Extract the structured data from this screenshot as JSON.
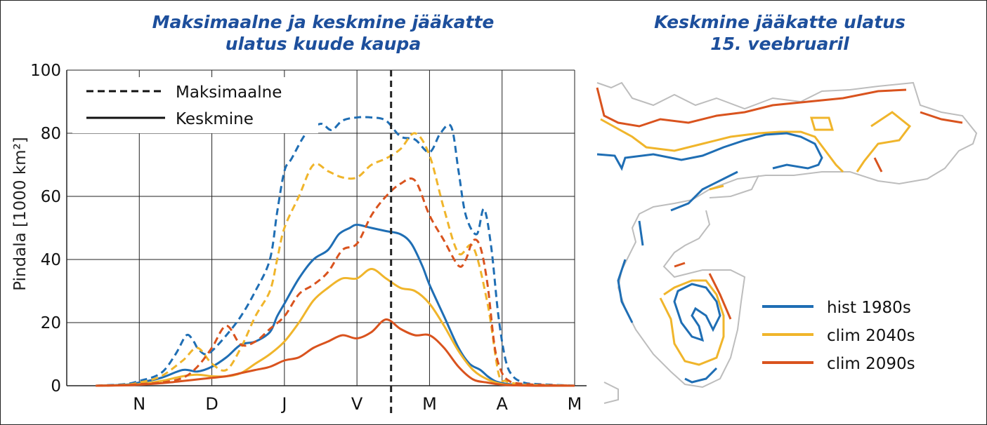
{
  "left_title": [
    "Maksimaalne ja keskmine jääkatte",
    "ulatus kuude kaupa"
  ],
  "right_title": [
    "Keskmine jääkatte ulatus",
    "15. veebruaril"
  ],
  "colors": {
    "hist": "#1f6eb4",
    "clim2040": "#f0b52b",
    "clim2090": "#d9531e",
    "title": "#1d4f9c"
  },
  "chart_data": [
    {
      "type": "line",
      "ylabel": "Pindala [1000 km²]",
      "xlabel": "",
      "ylim": [
        0,
        100
      ],
      "yticks": [
        0,
        20,
        40,
        60,
        80,
        100
      ],
      "xlim": [
        0,
        6.4
      ],
      "xticks": [
        {
          "label": "N",
          "x": 1
        },
        {
          "label": "D",
          "x": 2
        },
        {
          "label": "J",
          "x": 3
        },
        {
          "label": "V",
          "x": 4
        },
        {
          "label": "M",
          "x": 5
        },
        {
          "label": "A",
          "x": 6
        },
        {
          "label": "M",
          "x": 7
        }
      ],
      "xticks_range": [
        0,
        7
      ],
      "grid": true,
      "reference_line_x": 4.47,
      "legend_style": [
        {
          "label": "Maksimaalne",
          "dash": true
        },
        {
          "label": "Keskmine",
          "dash": false
        }
      ],
      "series": [
        {
          "name": "hist 1980s",
          "stat": "Maksimaalne",
          "color": "#1f6eb4",
          "dash": true,
          "x": [
            0.4,
            0.8,
            1.0,
            1.3,
            1.5,
            1.65,
            1.75,
            1.8,
            1.9,
            2.0,
            2.2,
            2.4,
            2.6,
            2.8,
            2.9,
            3.0,
            3.1,
            3.3,
            3.5,
            3.65,
            3.8,
            4.0,
            4.2,
            4.4,
            4.6,
            4.8,
            5.0,
            5.15,
            5.3,
            5.4,
            5.5,
            5.65,
            5.75,
            5.85,
            5.95,
            6.05,
            6.15,
            6.3,
            6.5,
            7.0
          ],
          "y": [
            0,
            0.5,
            1.5,
            4,
            10,
            16,
            14,
            12,
            10,
            11,
            16,
            22,
            30,
            40,
            55,
            68,
            72,
            80,
            83,
            81,
            84,
            85,
            85,
            84,
            79,
            78,
            74,
            80,
            82,
            68,
            54,
            48,
            56,
            44,
            22,
            8,
            3,
            1,
            0.5,
            0
          ]
        },
        {
          "name": "hist 1980s",
          "stat": "Keskmine",
          "color": "#1f6eb4",
          "dash": false,
          "x": [
            0.4,
            0.8,
            1.0,
            1.3,
            1.6,
            1.8,
            2.0,
            2.2,
            2.4,
            2.6,
            2.8,
            2.9,
            3.0,
            3.2,
            3.4,
            3.6,
            3.75,
            3.9,
            4.0,
            4.2,
            4.4,
            4.6,
            4.75,
            4.9,
            5.0,
            5.2,
            5.4,
            5.55,
            5.7,
            5.8,
            5.9,
            6.0,
            6.1,
            6.2,
            6.4,
            7.0
          ],
          "y": [
            0,
            0.3,
            1,
            2.5,
            5,
            4.5,
            6,
            9,
            13,
            14,
            17,
            22,
            26,
            34,
            40,
            43,
            48,
            50,
            51,
            50,
            49,
            48,
            45,
            38,
            32,
            22,
            12,
            7,
            5,
            3,
            1.5,
            0.8,
            0.5,
            0.3,
            0.2,
            0
          ]
        },
        {
          "name": "clim 2040s",
          "stat": "Maksimaalne",
          "color": "#f0b52b",
          "dash": true,
          "x": [
            0.4,
            0.8,
            1.0,
            1.3,
            1.6,
            1.8,
            2.0,
            2.2,
            2.4,
            2.6,
            2.8,
            2.9,
            3.0,
            3.2,
            3.4,
            3.6,
            3.8,
            4.0,
            4.2,
            4.4,
            4.6,
            4.8,
            5.0,
            5.2,
            5.4,
            5.6,
            5.8,
            5.95,
            6.05,
            6.15,
            6.3,
            6.5,
            7.0
          ],
          "y": [
            0,
            0.3,
            1,
            3,
            8,
            12,
            7,
            5,
            12,
            22,
            30,
            40,
            50,
            60,
            70,
            68,
            66,
            66,
            70,
            72,
            75,
            80,
            73,
            56,
            42,
            44,
            26,
            4,
            1.5,
            0.8,
            0.3,
            0.2,
            0
          ]
        },
        {
          "name": "clim 2040s",
          "stat": "Keskmine",
          "color": "#f0b52b",
          "dash": false,
          "x": [
            0.4,
            0.8,
            1.0,
            1.3,
            1.6,
            1.8,
            2.0,
            2.2,
            2.4,
            2.6,
            2.8,
            3.0,
            3.2,
            3.4,
            3.6,
            3.8,
            4.0,
            4.2,
            4.4,
            4.6,
            4.8,
            5.0,
            5.2,
            5.4,
            5.6,
            5.8,
            6.0,
            6.2,
            6.5,
            7.0
          ],
          "y": [
            0,
            0.2,
            0.5,
            1.5,
            3,
            3.5,
            3,
            3,
            4,
            7,
            10,
            14,
            20,
            27,
            31,
            34,
            34,
            37,
            34,
            31,
            30,
            26,
            19,
            11,
            5,
            2,
            0.5,
            0.2,
            0.1,
            0
          ]
        },
        {
          "name": "clim 2090s",
          "stat": "Maksimaalne",
          "color": "#d9531e",
          "dash": true,
          "x": [
            0.4,
            0.8,
            1.0,
            1.3,
            1.6,
            1.8,
            2.0,
            2.2,
            2.4,
            2.6,
            2.8,
            3.0,
            3.2,
            3.4,
            3.6,
            3.8,
            4.0,
            4.2,
            4.4,
            4.6,
            4.8,
            5.0,
            5.2,
            5.4,
            5.5,
            5.6,
            5.7,
            5.8,
            5.9,
            6.0,
            6.1,
            6.2,
            6.5,
            7.0
          ],
          "y": [
            0,
            0.2,
            0.5,
            1,
            2.5,
            6,
            12,
            19,
            13,
            14,
            18,
            22,
            29,
            32,
            36,
            43,
            45,
            54,
            60,
            64,
            65,
            54,
            46,
            38,
            40,
            46,
            44,
            32,
            12,
            4,
            1.5,
            0.8,
            0.3,
            0
          ]
        },
        {
          "name": "clim 2090s",
          "stat": "Keskmine",
          "color": "#d9531e",
          "dash": false,
          "x": [
            0.4,
            0.8,
            1.0,
            1.3,
            1.6,
            1.8,
            2.0,
            2.2,
            2.4,
            2.6,
            2.8,
            3.0,
            3.2,
            3.4,
            3.6,
            3.8,
            4.0,
            4.2,
            4.4,
            4.6,
            4.8,
            5.0,
            5.2,
            5.4,
            5.6,
            5.8,
            6.0,
            6.2,
            6.5,
            7.0
          ],
          "y": [
            0,
            0.1,
            0.3,
            0.8,
            1.5,
            2,
            2.5,
            3,
            4,
            5,
            6,
            8,
            9,
            12,
            14,
            16,
            15,
            17,
            21,
            18,
            16,
            16,
            12,
            6,
            2,
            1,
            0.3,
            0.1,
            0,
            0
          ]
        }
      ]
    },
    {
      "type": "map",
      "title": "Keskmine jääkatte ulatus 15. veebruaril",
      "legend": [
        {
          "label": "hist 1980s",
          "color": "#1f6eb4"
        },
        {
          "label": "clim 2040s",
          "color": "#f0b52b"
        },
        {
          "label": "clim 2090s",
          "color": "#d9531e"
        }
      ]
    }
  ]
}
